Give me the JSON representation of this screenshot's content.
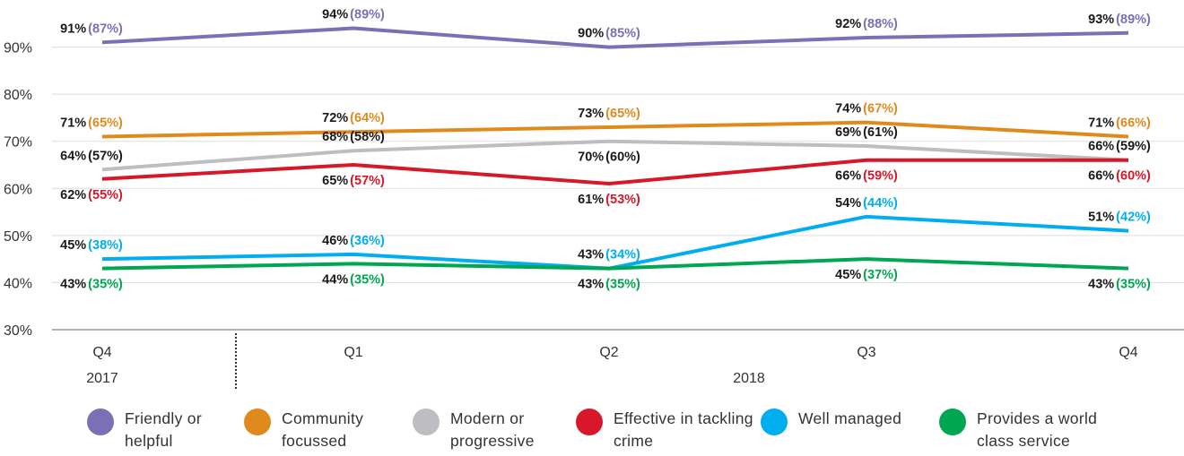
{
  "chart_data": {
    "type": "line",
    "categories": [
      "Q4",
      "Q1",
      "Q2",
      "Q3",
      "Q4"
    ],
    "groups": [
      {
        "label": "2017",
        "start": 0,
        "end": 0
      },
      {
        "label": "2018",
        "start": 1,
        "end": 4
      }
    ],
    "ylim": [
      30,
      100
    ],
    "yticks": [
      {
        "value": 30,
        "label": "30%"
      },
      {
        "value": 40,
        "label": "40%"
      },
      {
        "value": 50,
        "label": "50%"
      },
      {
        "value": 60,
        "label": "60%"
      },
      {
        "value": 70,
        "label": "70%"
      },
      {
        "value": 80,
        "label": "80%"
      },
      {
        "value": 90,
        "label": "90%"
      }
    ],
    "grid": true,
    "series": [
      {
        "name": "Friendly or helpful",
        "color": "#7b6fb5",
        "label_color": "#7b6fb5",
        "values": [
          91,
          94,
          90,
          92,
          93
        ],
        "value_labels": [
          "91%",
          "94%",
          "90%",
          "92%",
          "93%"
        ],
        "secondary_values": [
          87,
          89,
          85,
          88,
          89
        ],
        "secondary_labels": [
          "(87%)",
          "(89%)",
          "(85%)",
          "(88%)",
          "(89%)"
        ]
      },
      {
        "name": "Community focussed",
        "color": "#e08a1e",
        "label_color": "#e08a1e",
        "values": [
          71,
          72,
          73,
          74,
          71
        ],
        "value_labels": [
          "71%",
          "72%",
          "73%",
          "74%",
          "71%"
        ],
        "secondary_values": [
          65,
          64,
          65,
          67,
          66
        ],
        "secondary_labels": [
          "(65%)",
          "(64%)",
          "(65%)",
          "(67%)",
          "(66%)"
        ]
      },
      {
        "name": "Modern or progressive",
        "color": "#bdbdc2",
        "label_color": "#1a1a1a",
        "values": [
          64,
          68,
          70,
          69,
          66
        ],
        "value_labels": [
          "64%",
          "68%",
          "70%",
          "69%",
          "66%"
        ],
        "secondary_values": [
          57,
          58,
          60,
          61,
          59
        ],
        "secondary_labels": [
          "(57%)",
          "(58%)",
          "(60%)",
          "(61%)",
          "(59%)"
        ]
      },
      {
        "name": "Effective in tackling crime",
        "color": "#d7182a",
        "label_color": "#d7182a",
        "values": [
          62,
          65,
          61,
          66,
          66
        ],
        "value_labels": [
          "62%",
          "65%",
          "61%",
          "66%",
          "66%"
        ],
        "secondary_values": [
          55,
          57,
          53,
          59,
          60
        ],
        "secondary_labels": [
          "(55%)",
          "(57%)",
          "(53%)",
          "(59%)",
          "(60%)"
        ]
      },
      {
        "name": "Well managed",
        "color": "#00aeef",
        "label_color": "#00aeef",
        "values": [
          45,
          46,
          43,
          54,
          51
        ],
        "value_labels": [
          "45%",
          "46%",
          "43%",
          "54%",
          "51%"
        ],
        "secondary_values": [
          38,
          36,
          34,
          44,
          42
        ],
        "secondary_labels": [
          "(38%)",
          "(36%)",
          "(34%)",
          "(44%)",
          "(42%)"
        ]
      },
      {
        "name": "Provides a world class service",
        "color": "#00a651",
        "label_color": "#00a651",
        "values": [
          43,
          44,
          43,
          45,
          43
        ],
        "value_labels": [
          "43%",
          "44%",
          "43%",
          "45%",
          "43%"
        ],
        "secondary_values": [
          35,
          35,
          35,
          37,
          35
        ],
        "secondary_labels": [
          "(35%)",
          "(35%)",
          "(35%)",
          "(37%)",
          "(35%)"
        ]
      }
    ]
  }
}
